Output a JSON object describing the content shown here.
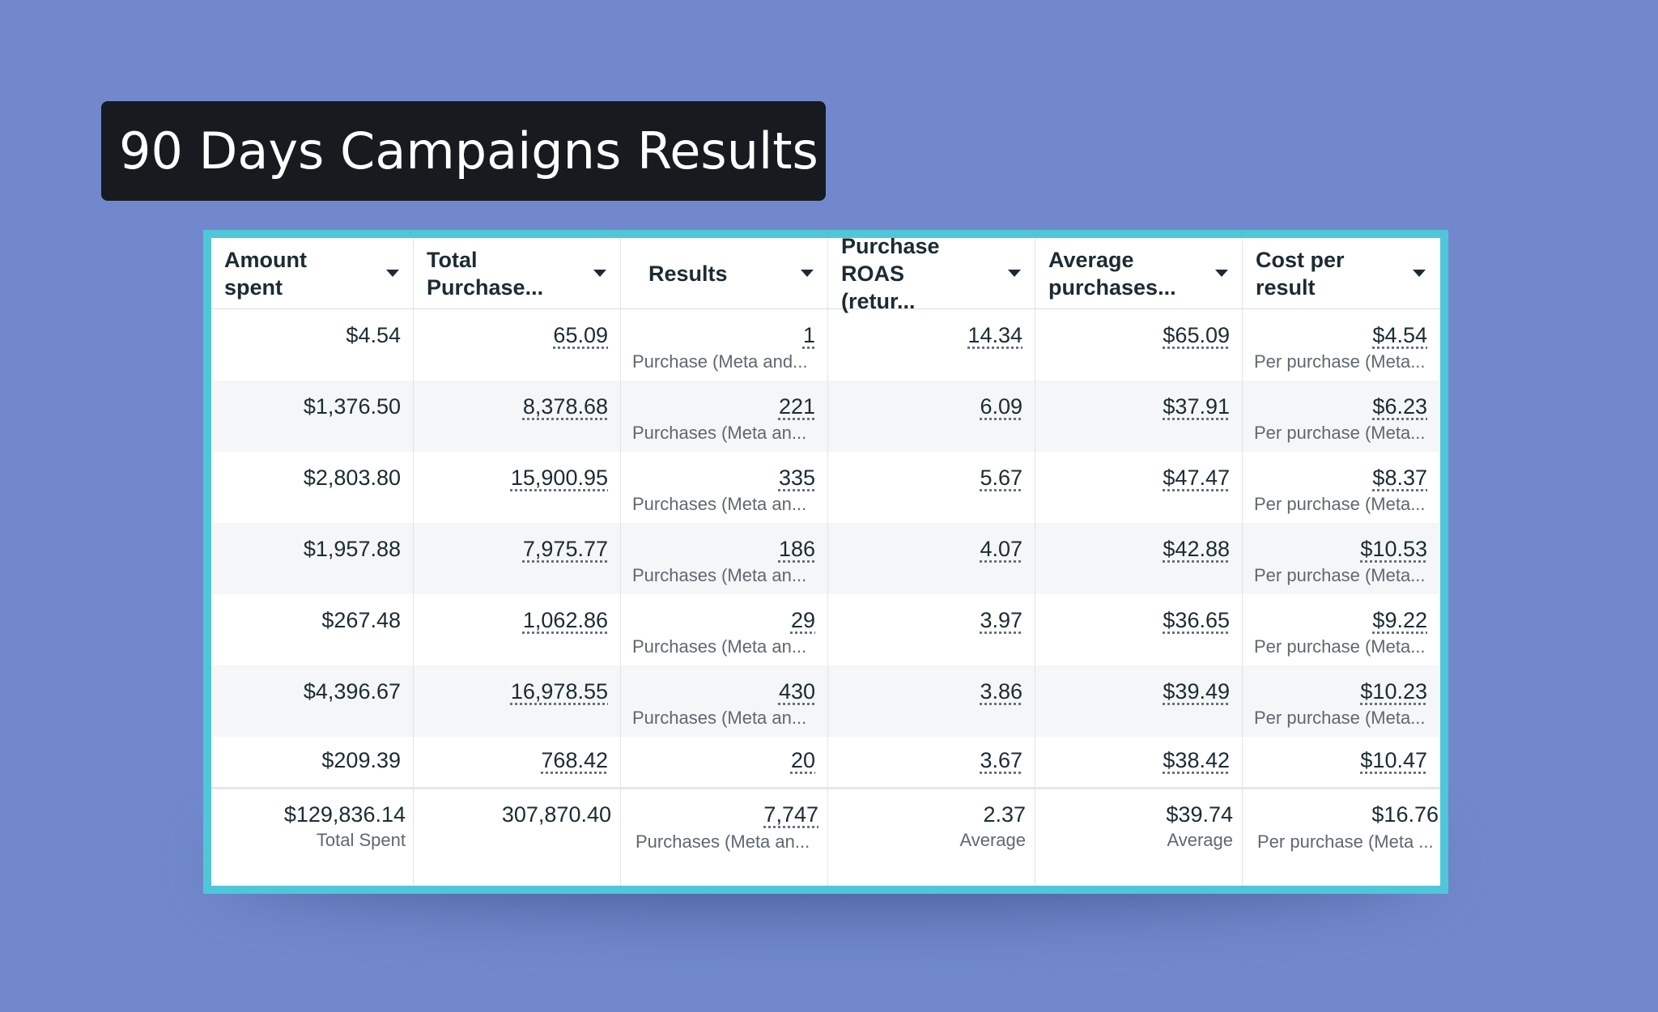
{
  "title": "90 Days Campaigns Results",
  "columns": [
    {
      "label": "Amount spent"
    },
    {
      "label": "Total\nPurchase..."
    },
    {
      "label": "Results"
    },
    {
      "label": "Purchase\nROAS (retur..."
    },
    {
      "label": "Average\npurchases..."
    },
    {
      "label": "Cost per\nresult"
    }
  ],
  "rows": [
    {
      "amount": "$4.54",
      "total_purchase": "65.09",
      "results": "1",
      "results_sub": "Purchase (Meta and...",
      "roas": "14.34",
      "avg": "$65.09",
      "cost": "$4.54",
      "cost_sub": "Per purchase (Meta..."
    },
    {
      "amount": "$1,376.50",
      "total_purchase": "8,378.68",
      "results": "221",
      "results_sub": "Purchases (Meta an...",
      "roas": "6.09",
      "avg": "$37.91",
      "cost": "$6.23",
      "cost_sub": "Per purchase (Meta..."
    },
    {
      "amount": "$2,803.80",
      "total_purchase": "15,900.95",
      "results": "335",
      "results_sub": "Purchases (Meta an...",
      "roas": "5.67",
      "avg": "$47.47",
      "cost": "$8.37",
      "cost_sub": "Per purchase (Meta..."
    },
    {
      "amount": "$1,957.88",
      "total_purchase": "7,975.77",
      "results": "186",
      "results_sub": "Purchases (Meta an...",
      "roas": "4.07",
      "avg": "$42.88",
      "cost": "$10.53",
      "cost_sub": "Per purchase (Meta..."
    },
    {
      "amount": "$267.48",
      "total_purchase": "1,062.86",
      "results": "29",
      "results_sub": "Purchases (Meta an...",
      "roas": "3.97",
      "avg": "$36.65",
      "cost": "$9.22",
      "cost_sub": "Per purchase (Meta..."
    },
    {
      "amount": "$4,396.67",
      "total_purchase": "16,978.55",
      "results": "430",
      "results_sub": "Purchases (Meta an...",
      "roas": "3.86",
      "avg": "$39.49",
      "cost": "$10.23",
      "cost_sub": "Per purchase (Meta..."
    },
    {
      "amount": "$209.39",
      "total_purchase": "768.42",
      "results": "20",
      "results_sub": "",
      "roas": "3.67",
      "avg": "$38.42",
      "cost": "$10.47",
      "cost_sub": ""
    }
  ],
  "totals": {
    "amount": "$129,836.14",
    "amount_sub": "Total Spent",
    "total_purchase": "307,870.40",
    "results": "7,747",
    "results_sub": "Purchases (Meta an...",
    "roas": "2.37",
    "roas_sub": "Average",
    "avg": "$39.74",
    "avg_sub": "Average",
    "cost": "$16.76",
    "cost_sub": "Per purchase (Meta ..."
  },
  "colors": {
    "background": "#7189cc",
    "title_bg": "#171a1f",
    "frame": "#4fc7d9",
    "row_alt": "#f5f6f7"
  },
  "icons": {
    "sort": "caret-down-icon"
  }
}
